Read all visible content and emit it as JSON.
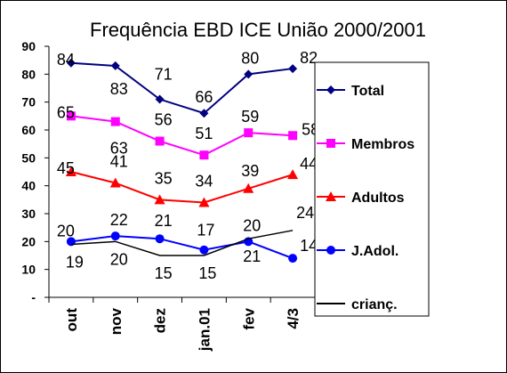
{
  "chart_data": {
    "type": "line",
    "title": "Frequência EBD ICE União 2000/2001",
    "categories": [
      "out",
      "nov",
      "dez",
      "jan.01",
      "fev",
      "4/3"
    ],
    "ylim": [
      0,
      90
    ],
    "yticks": [
      "-",
      "10",
      "20",
      "30",
      "40",
      "50",
      "60",
      "70",
      "80",
      "90"
    ],
    "grid": false,
    "legend_position": "right",
    "series": [
      {
        "name": "Total",
        "values": [
          84,
          83,
          71,
          66,
          80,
          82
        ],
        "color": "#000080",
        "marker": "diamond"
      },
      {
        "name": "Membros",
        "values": [
          65,
          63,
          56,
          51,
          59,
          58
        ],
        "color": "#FF00FF",
        "marker": "square"
      },
      {
        "name": "Adultos",
        "values": [
          45,
          41,
          35,
          34,
          39,
          44
        ],
        "color": "#FF0000",
        "marker": "triangle"
      },
      {
        "name": "J.Adol.",
        "values": [
          20,
          22,
          21,
          17,
          20,
          14
        ],
        "color": "#0000FF",
        "marker": "circle"
      },
      {
        "name": "crianç.",
        "values": [
          19,
          20,
          15,
          15,
          21,
          24
        ],
        "color": "#000000",
        "marker": "none"
      }
    ]
  }
}
